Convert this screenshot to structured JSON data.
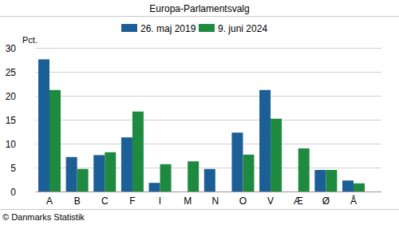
{
  "chart_data": {
    "type": "bar",
    "title": "Europa-Parlamentsvalg",
    "y_label": "Pct.",
    "source": "© Danmarks Statistik",
    "categories": [
      "A",
      "B",
      "C",
      "F",
      "I",
      "M",
      "N",
      "O",
      "V",
      "Æ",
      "Ø",
      "Å"
    ],
    "series": [
      {
        "name": "26. maj 2019",
        "color": "#1c5e96",
        "values": [
          27.6,
          7.2,
          7.6,
          11.3,
          1.8,
          null,
          4.7,
          12.3,
          21.2,
          null,
          4.5,
          2.3
        ]
      },
      {
        "name": "9. juni 2024",
        "color": "#1e8a3f",
        "values": [
          21.2,
          4.7,
          8.2,
          16.7,
          5.7,
          6.3,
          null,
          7.7,
          15.2,
          9.0,
          4.5,
          1.7
        ]
      }
    ],
    "ylim": [
      0,
      30
    ],
    "yticks": [
      0,
      5,
      10,
      15,
      20,
      25,
      30
    ],
    "grid": true,
    "legend": "top"
  }
}
